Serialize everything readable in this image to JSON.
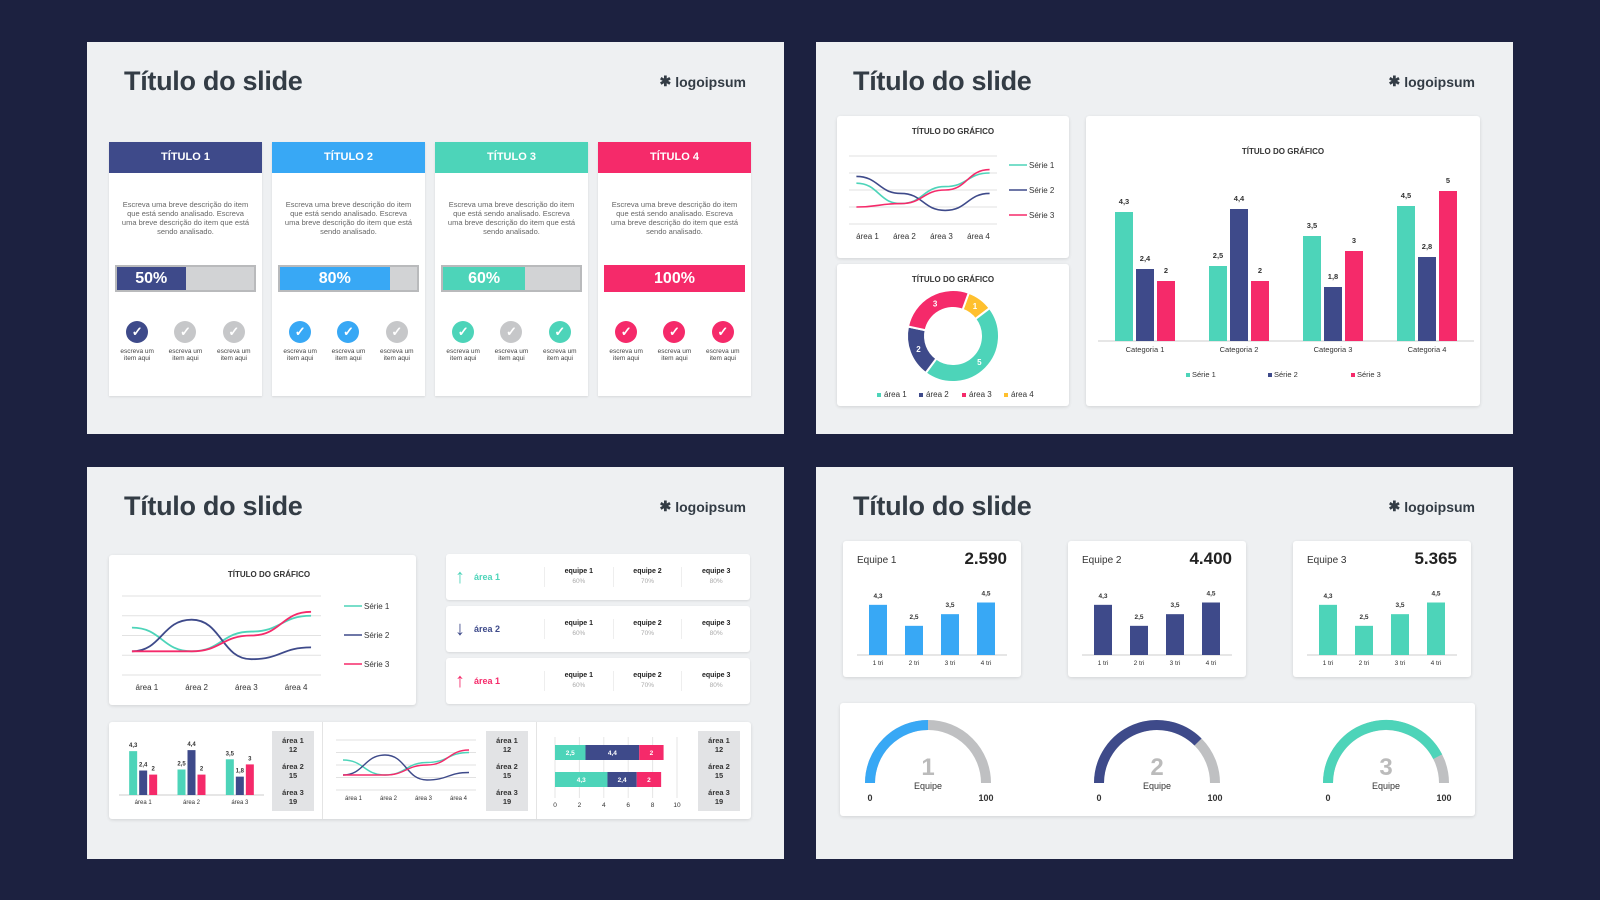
{
  "slide_title": "Título do slide",
  "logo_text": "logoipsum",
  "colors": {
    "navy": "#3e4a8a",
    "blue": "#38a8f5",
    "teal": "#4dd4b9",
    "pink": "#f52a6a",
    "yellow": "#ffc02e",
    "grey": "#c2c3c5",
    "bg": "#1c2140"
  },
  "slide1": {
    "columns": [
      {
        "title": "TÍTULO 1",
        "desc": "Escreva uma breve descrição do item que está sendo analisado. Escreva uma breve descrição do item que está sendo analisado.",
        "percent_label": "50%",
        "progress": 0.5,
        "color": "#3e4a8a",
        "checks": [
          true,
          false,
          false
        ],
        "check_label": "escreva um item aqui"
      },
      {
        "title": "TÍTULO 2",
        "desc": "Escreva uma breve descrição do item que está sendo analisado. Escreva uma breve descrição do item que está sendo analisado.",
        "percent_label": "80%",
        "progress": 0.8,
        "color": "#38a8f5",
        "checks": [
          true,
          true,
          false
        ],
        "check_label": "escreva um item aqui"
      },
      {
        "title": "TÍTULO 3",
        "desc": "Escreva uma breve descrição do item que está sendo analisado. Escreva uma breve descrição do item que está sendo analisado.",
        "percent_label": "60%",
        "progress": 0.6,
        "color": "#4dd4b9",
        "checks": [
          true,
          false,
          true
        ],
        "check_label": "escreva um item aqui"
      },
      {
        "title": "TÍTULO 4",
        "desc": "Escreva uma breve descrição do item que está sendo analisado. Escreva uma breve descrição do item que está sendo analisado.",
        "percent_label": "100%",
        "progress": 1.0,
        "color": "#f52a6a",
        "checks": [
          true,
          true,
          true
        ],
        "check_label": "escreva um item aqui"
      }
    ]
  },
  "slide2": {
    "line_title": "TÍTULO DO GRÁFICO",
    "donut_title": "TÍTULO DO GRÁFICO",
    "bar_title": "TÍTULO DO GRÁFICO"
  },
  "slide3": {
    "line_title": "TÍTULO DO GRÁFICO",
    "kpi_rows": [
      {
        "arrow": "up",
        "label": "área 1",
        "color": "#4dd4b9",
        "cells": [
          {
            "a": "equipe 1",
            "b": "60%"
          },
          {
            "a": "equipe 2",
            "b": "70%"
          },
          {
            "a": "equipe 3",
            "b": "80%"
          }
        ]
      },
      {
        "arrow": "down",
        "label": "área 2",
        "color": "#3e4a8a",
        "cells": [
          {
            "a": "equipe 1",
            "b": "60%"
          },
          {
            "a": "equipe 2",
            "b": "70%"
          },
          {
            "a": "equipe 3",
            "b": "80%"
          }
        ]
      },
      {
        "arrow": "up",
        "label": "área 1",
        "color": "#f52a6a",
        "cells": [
          {
            "a": "equipe 1",
            "b": "60%"
          },
          {
            "a": "equipe 2",
            "b": "70%"
          },
          {
            "a": "equipe 3",
            "b": "80%"
          }
        ]
      }
    ],
    "side_box": [
      {
        "a": "área 1",
        "b": "12"
      },
      {
        "a": "área 2",
        "b": "15"
      },
      {
        "a": "área 3",
        "b": "19"
      }
    ]
  },
  "slide4": {
    "teams": [
      {
        "name": "Equipe 1",
        "value": "2.590",
        "color": "#38a8f5"
      },
      {
        "name": "Equipe 2",
        "value": "4.400",
        "color": "#3e4a8a"
      },
      {
        "name": "Equipe 3",
        "value": "5.365",
        "color": "#4dd4b9"
      }
    ],
    "gauges": [
      {
        "num": "1",
        "label": "Equipe",
        "min": "0",
        "max": "100",
        "level": 0.5,
        "color": "#38a8f5"
      },
      {
        "num": "2",
        "label": "Equipe",
        "min": "0",
        "max": "100",
        "level": 0.75,
        "color": "#3e4a8a"
      },
      {
        "num": "3",
        "label": "Equipe",
        "min": "0",
        "max": "100",
        "level": 0.85,
        "color": "#4dd4b9"
      }
    ]
  },
  "chart_data": [
    {
      "id": "s2-line",
      "type": "line",
      "title": "TÍTULO DO GRÁFICO",
      "categories": [
        "área 1",
        "área 2",
        "área 3",
        "área 4"
      ],
      "series": [
        {
          "name": "Série 1",
          "color": "#4dd4b9",
          "values": [
            3.2,
            2.6,
            3.1,
            3.5
          ]
        },
        {
          "name": "Série 2",
          "color": "#3e4a8a",
          "values": [
            3.4,
            2.9,
            2.4,
            2.9
          ]
        },
        {
          "name": "Série 3",
          "color": "#f52a6a",
          "values": [
            2.5,
            2.6,
            3.0,
            3.6
          ]
        }
      ]
    },
    {
      "id": "s2-donut",
      "type": "pie",
      "title": "TÍTULO DO GRÁFICO",
      "categories": [
        "área 1",
        "área 2",
        "área 3",
        "área 4"
      ],
      "values": [
        5,
        2,
        3,
        1
      ],
      "colors": [
        "#4dd4b9",
        "#3e4a8a",
        "#f52a6a",
        "#ffc02e"
      ]
    },
    {
      "id": "s2-bar",
      "type": "bar",
      "title": "TÍTULO DO GRÁFICO",
      "categories": [
        "Categoria 1",
        "Categoria 2",
        "Categoria 3",
        "Categoria 4"
      ],
      "series": [
        {
          "name": "Série 1",
          "color": "#4dd4b9",
          "values": [
            4.3,
            2.5,
            3.5,
            4.5
          ],
          "labels": [
            "4,3",
            "2,5",
            "3,5",
            "4,5"
          ]
        },
        {
          "name": "Série 2",
          "color": "#3e4a8a",
          "values": [
            2.4,
            4.4,
            1.8,
            2.8
          ],
          "labels": [
            "2,4",
            "4,4",
            "1,8",
            "2,8"
          ]
        },
        {
          "name": "Série 3",
          "color": "#f52a6a",
          "values": [
            2,
            2,
            3,
            5
          ],
          "labels": [
            "2",
            "2",
            "3",
            "5"
          ]
        }
      ],
      "ylim": [
        0,
        5.5
      ],
      "legend": "bottom"
    },
    {
      "id": "s3-line",
      "type": "line",
      "title": "TÍTULO DO GRÁFICO",
      "categories": [
        "área 1",
        "área 2",
        "área 3",
        "área 4"
      ],
      "series": [
        {
          "name": "Série 1",
          "color": "#4dd4b9",
          "values": [
            3.2,
            2.6,
            3.1,
            3.5
          ]
        },
        {
          "name": "Série 2",
          "color": "#3e4a8a",
          "values": [
            2.6,
            3.4,
            2.4,
            2.7
          ]
        },
        {
          "name": "Série 3",
          "color": "#f52a6a",
          "values": [
            2.6,
            2.6,
            3.0,
            3.6
          ]
        }
      ]
    },
    {
      "id": "s3-minibar",
      "type": "bar",
      "categories": [
        "área 1",
        "área 2",
        "área 3"
      ],
      "series": [
        {
          "name": "Série 1",
          "color": "#4dd4b9",
          "values": [
            4.3,
            2.5,
            3.5
          ],
          "labels": [
            "4,3",
            "2,5",
            "3,5"
          ]
        },
        {
          "name": "Série 2",
          "color": "#3e4a8a",
          "values": [
            2.4,
            4.4,
            1.8
          ],
          "labels": [
            "2,4",
            "4,4",
            "1,8"
          ]
        },
        {
          "name": "Série 3",
          "color": "#f52a6a",
          "values": [
            2,
            2,
            3
          ],
          "labels": [
            "2",
            "2",
            "3"
          ]
        }
      ],
      "ylim": [
        0,
        5
      ]
    },
    {
      "id": "s3-miniline",
      "type": "line",
      "categories": [
        "área 1",
        "área 2",
        "área 3",
        "área 4"
      ],
      "series": [
        {
          "name": "Série 1",
          "color": "#4dd4b9",
          "values": [
            3.2,
            2.6,
            3.1,
            3.5
          ]
        },
        {
          "name": "Série 2",
          "color": "#3e4a8a",
          "values": [
            2.6,
            3.4,
            2.4,
            2.7
          ]
        },
        {
          "name": "Série 3",
          "color": "#f52a6a",
          "values": [
            2.6,
            2.6,
            3.0,
            3.6
          ]
        }
      ]
    },
    {
      "id": "s3-stacked",
      "type": "bar",
      "orientation": "horizontal",
      "stacked": true,
      "xticks": [
        "0",
        "2",
        "4",
        "6",
        "8",
        "10"
      ],
      "xlim": [
        0,
        10
      ],
      "rows": [
        {
          "segments": [
            {
              "v": 2.5,
              "label": "2,5",
              "color": "#4dd4b9"
            },
            {
              "v": 4.4,
              "label": "4,4",
              "color": "#3e4a8a"
            },
            {
              "v": 2,
              "label": "2",
              "color": "#f52a6a"
            }
          ]
        },
        {
          "segments": [
            {
              "v": 4.3,
              "label": "4,3",
              "color": "#4dd4b9"
            },
            {
              "v": 2.4,
              "label": "2,4",
              "color": "#3e4a8a"
            },
            {
              "v": 2,
              "label": "2",
              "color": "#f52a6a"
            }
          ]
        }
      ]
    },
    {
      "id": "s4-team1",
      "type": "bar",
      "categories": [
        "1 tri",
        "2 tri",
        "3 tri",
        "4 tri"
      ],
      "values": [
        4.3,
        2.5,
        3.5,
        4.5
      ],
      "labels": [
        "4,3",
        "2,5",
        "3,5",
        "4,5"
      ],
      "color": "#38a8f5"
    },
    {
      "id": "s4-team2",
      "type": "bar",
      "categories": [
        "1 tri",
        "2 tri",
        "3 tri",
        "4 tri"
      ],
      "values": [
        4.3,
        2.5,
        3.5,
        4.5
      ],
      "labels": [
        "4,3",
        "2,5",
        "3,5",
        "4,5"
      ],
      "color": "#3e4a8a"
    },
    {
      "id": "s4-team3",
      "type": "bar",
      "categories": [
        "1 tri",
        "2 tri",
        "3 tri",
        "4 tri"
      ],
      "values": [
        4.3,
        2.5,
        3.5,
        4.5
      ],
      "labels": [
        "4,3",
        "2,5",
        "3,5",
        "4,5"
      ],
      "color": "#4dd4b9"
    }
  ]
}
